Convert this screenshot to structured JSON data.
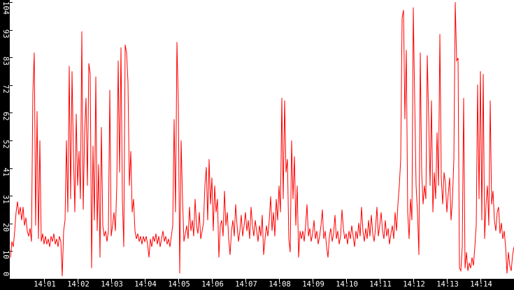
{
  "chart_data": {
    "type": "line",
    "title": "",
    "line_color": "#ff0000",
    "plot_bg": "#ffffff",
    "axis_band_color": "#000000",
    "tick_label_color": "#ffffff",
    "grid": false,
    "legend": false,
    "x_axis": {
      "tick_labels": [
        "14:01",
        "14:02",
        "14:03",
        "14:04",
        "14:05",
        "14:06",
        "14:07",
        "14:08",
        "14:09",
        "14:10",
        "14:11",
        "14:12",
        "14:13",
        "14:14"
      ],
      "range": [
        "14:00",
        "14:15"
      ]
    },
    "y_axis": {
      "tick_labels": [
        "104",
        "93",
        "83",
        "72",
        "62",
        "52",
        "41",
        "31",
        "20",
        "10",
        "0"
      ],
      "min": 0,
      "max": 104
    },
    "series": [
      {
        "name": "value",
        "t0_seconds": 0,
        "dt_seconds": 2.5,
        "values": [
          8,
          14,
          12,
          18,
          25,
          29,
          24,
          27,
          22,
          27,
          20,
          23,
          18,
          16,
          19,
          14,
          70,
          85,
          20,
          63,
          15,
          52,
          14,
          17,
          13,
          16,
          13,
          15,
          12,
          16,
          14,
          17,
          13,
          15,
          12,
          16,
          14,
          1,
          18,
          22,
          52,
          25,
          80,
          30,
          78,
          47,
          25,
          62,
          35,
          48,
          30,
          93,
          26,
          55,
          68,
          35,
          81,
          77,
          4,
          50,
          22,
          76,
          18,
          43,
          8,
          57,
          20,
          16,
          18,
          14,
          18,
          71,
          16,
          20,
          25,
          18,
          35,
          82,
          40,
          87,
          30,
          12,
          88,
          85,
          74,
          35,
          48,
          25,
          30,
          18,
          15,
          17,
          14,
          16,
          13,
          16,
          14,
          16,
          13,
          8,
          15,
          12,
          16,
          14,
          17,
          13,
          16,
          12,
          15,
          18,
          14,
          16,
          13,
          15,
          12,
          16,
          20,
          60,
          25,
          89,
          66,
          2,
          52,
          30,
          14,
          17,
          20,
          15,
          27,
          18,
          22,
          16,
          30,
          20,
          17,
          25,
          15,
          18,
          21,
          35,
          42,
          22,
          45,
          28,
          38,
          18,
          35,
          25,
          30,
          8,
          20,
          22,
          16,
          33,
          20,
          25,
          15,
          9,
          18,
          22,
          16,
          28,
          20,
          14,
          18,
          24,
          16,
          20,
          25,
          18,
          22,
          15,
          27,
          20,
          16,
          22,
          18,
          14,
          20,
          16,
          24,
          9,
          15,
          20,
          16,
          22,
          31,
          18,
          25,
          16,
          30,
          22,
          35,
          25,
          68,
          30,
          67,
          40,
          45,
          15,
          10,
          52,
          30,
          46,
          20,
          35,
          8,
          18,
          15,
          18,
          14,
          20,
          28,
          16,
          19,
          14,
          17,
          22,
          15,
          18,
          13,
          16,
          20,
          26,
          15,
          18,
          12,
          8,
          16,
          19,
          14,
          17,
          24,
          15,
          18,
          13,
          16,
          26,
          19,
          15,
          17,
          13,
          18,
          15,
          20,
          16,
          12,
          18,
          15,
          21,
          16,
          27,
          18,
          14,
          19,
          15,
          22,
          16,
          24,
          17,
          14,
          19,
          27,
          16,
          20,
          25,
          18,
          15,
          22,
          16,
          19,
          13,
          17,
          20,
          15,
          25,
          18,
          28,
          35,
          45,
          98,
          101,
          60,
          86,
          25,
          15,
          30,
          22,
          102,
          67,
          35,
          25,
          9,
          85,
          40,
          28,
          35,
          30,
          84,
          60,
          35,
          67,
          25,
          40,
          30,
          55,
          35,
          92,
          38,
          28,
          40,
          36,
          25,
          32,
          38,
          22,
          30,
          45,
          104,
          82,
          83,
          4,
          3,
          12,
          68,
          4,
          10,
          3,
          6,
          4,
          8,
          5,
          12,
          20,
          73,
          30,
          78,
          22,
          77,
          15,
          28,
          35,
          20,
          67,
          28,
          33,
          22,
          18,
          25,
          27,
          17,
          21,
          15,
          18,
          12,
          2,
          10,
          5,
          3,
          9,
          12
        ]
      }
    ]
  }
}
